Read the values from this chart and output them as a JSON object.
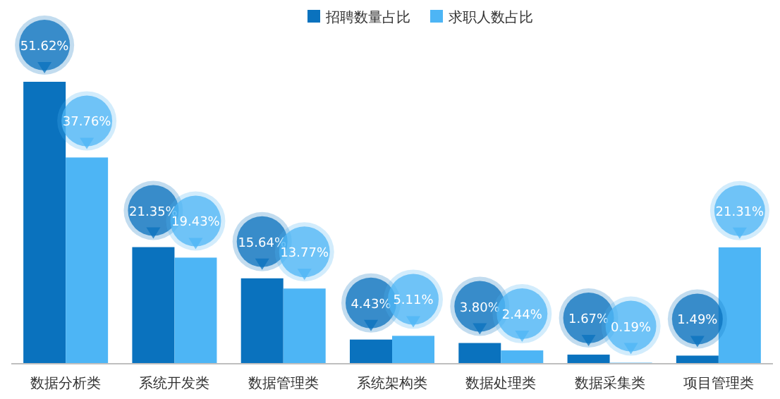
{
  "chart_data": {
    "type": "bar",
    "legend": "top",
    "categories": [
      "数据分析类",
      "系统开发类",
      "数据管理类",
      "系统架构类",
      "数据处理类",
      "数据采集类",
      "项目管理类"
    ],
    "series": [
      {
        "name": "招聘数量占比",
        "color": "#0a72be",
        "values": [
          51.62,
          21.35,
          15.64,
          4.43,
          3.8,
          1.67,
          1.49
        ],
        "value_labels": [
          "51.62%",
          "21.35%",
          "15.64%",
          "4.43%",
          "3.80%",
          "1.67%",
          "1.49%"
        ]
      },
      {
        "name": "求职人数占比",
        "color": "#4db5f5",
        "values": [
          37.76,
          19.43,
          13.77,
          5.11,
          2.44,
          0.19,
          21.31
        ],
        "value_labels": [
          "37.76%",
          "19.43%",
          "13.77%",
          "5.11%",
          "2.44%",
          "0.19%",
          "21.31%"
        ]
      }
    ]
  }
}
